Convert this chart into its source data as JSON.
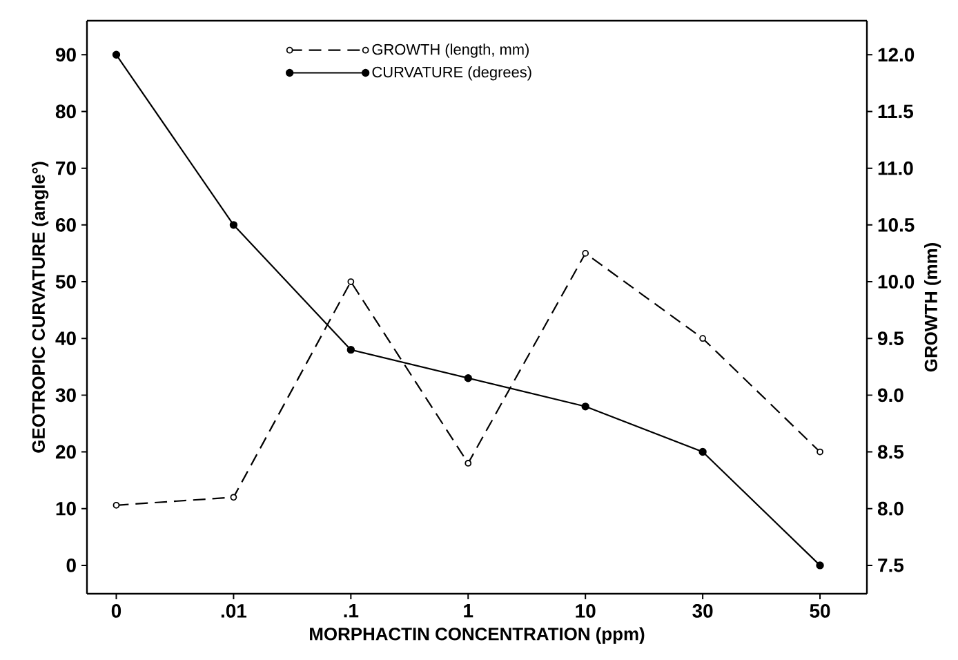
{
  "chart_data": {
    "type": "line",
    "xlabel": "MORPHACTIN CONCENTRATION (ppm)",
    "ylabel": "GEOTROPIC CURVATURE (angle°)",
    "y2label": "GROWTH (mm)",
    "categories": [
      "0",
      ".01",
      ".1",
      "1",
      "10",
      "30",
      "50"
    ],
    "series": [
      {
        "name": "GROWTH (length, mm)",
        "color": "#000000",
        "axis": "y2",
        "line_style": "dashed",
        "marker": "circle",
        "values": [
          8.03,
          8.1,
          10.0,
          8.4,
          10.25,
          9.5,
          8.5
        ]
      },
      {
        "name": "CURVATURE (degrees)",
        "color": "#000000",
        "line_style": "solid",
        "marker": "circle",
        "values": [
          90,
          60,
          38,
          33,
          28,
          20,
          0
        ]
      }
    ],
    "ylim": [
      -5,
      96
    ],
    "yticks": [
      0,
      10,
      20,
      30,
      40,
      50,
      60,
      70,
      80,
      90
    ],
    "y2lim": [
      7.25,
      12.3
    ],
    "y2ticks": [
      {
        "value": 7.5,
        "label": "7.5"
      },
      {
        "value": 8,
        "label": "8.0"
      },
      {
        "value": 8.5,
        "label": "8.5"
      },
      {
        "value": 9,
        "label": "9.0"
      },
      {
        "value": 9.5,
        "label": "9.5"
      },
      {
        "value": 10,
        "label": "10.0"
      },
      {
        "value": 10.5,
        "label": "10.5"
      },
      {
        "value": 11,
        "label": "11.0"
      },
      {
        "value": 11.5,
        "label": "11.5"
      },
      {
        "value": 12,
        "label": "12.0"
      }
    ],
    "grid": false,
    "legend": "top left"
  }
}
